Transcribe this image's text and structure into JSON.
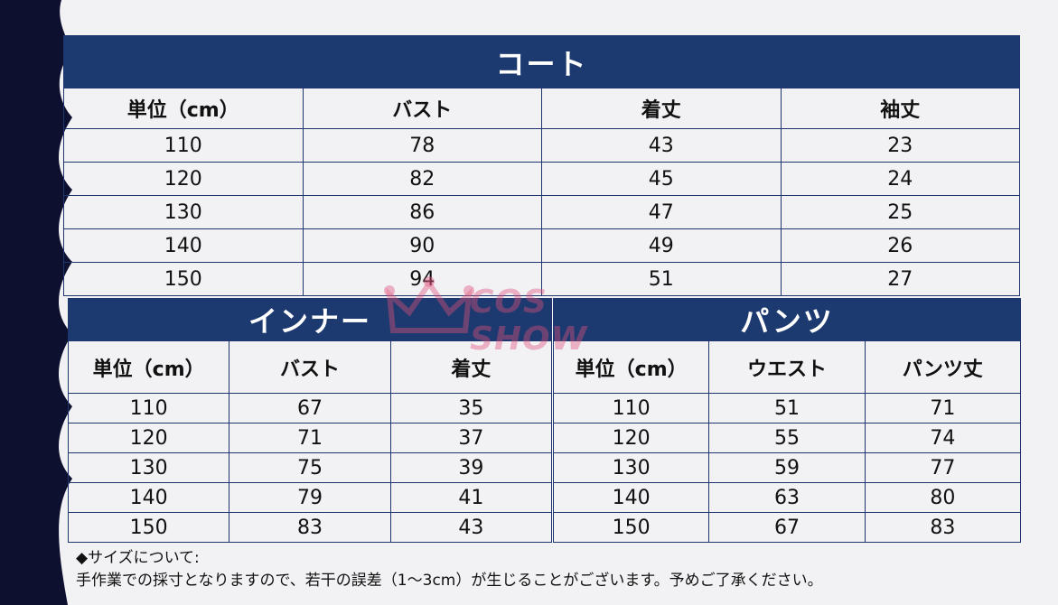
{
  "coat": {
    "title": "コート",
    "headers": [
      "単位（cm）",
      "バスト",
      "着丈",
      "袖丈"
    ],
    "rows": [
      [
        "110",
        "78",
        "43",
        "23"
      ],
      [
        "120",
        "82",
        "45",
        "24"
      ],
      [
        "130",
        "86",
        "47",
        "25"
      ],
      [
        "140",
        "90",
        "49",
        "26"
      ],
      [
        "150",
        "94",
        "51",
        "27"
      ]
    ]
  },
  "inner": {
    "title": "インナー",
    "headers": [
      "単位（cm）",
      "バスト",
      "着丈"
    ],
    "rows": [
      [
        "110",
        "67",
        "35"
      ],
      [
        "120",
        "71",
        "37"
      ],
      [
        "130",
        "75",
        "39"
      ],
      [
        "140",
        "79",
        "41"
      ],
      [
        "150",
        "83",
        "43"
      ]
    ]
  },
  "pants": {
    "title": "パンツ",
    "headers": [
      "単位（cm）",
      "ウエスト",
      "パンツ丈"
    ],
    "rows": [
      [
        "110",
        "51",
        "71"
      ],
      [
        "120",
        "55",
        "74"
      ],
      [
        "130",
        "59",
        "77"
      ],
      [
        "140",
        "63",
        "80"
      ],
      [
        "150",
        "67",
        "83"
      ]
    ]
  },
  "watermark": {
    "text": "COS SHOW",
    "icon": "crown-icon",
    "color": "#e0507a"
  },
  "notes": {
    "heading": "◆サイズについて:",
    "body": "手作業での採寸となりますので、若干の誤差（1～3cm）が生じることがございます。予めご了承ください。"
  },
  "colors": {
    "header_bg": "#1d3a70",
    "side_dark": "#0e1030",
    "background": "#f2f2f4"
  }
}
